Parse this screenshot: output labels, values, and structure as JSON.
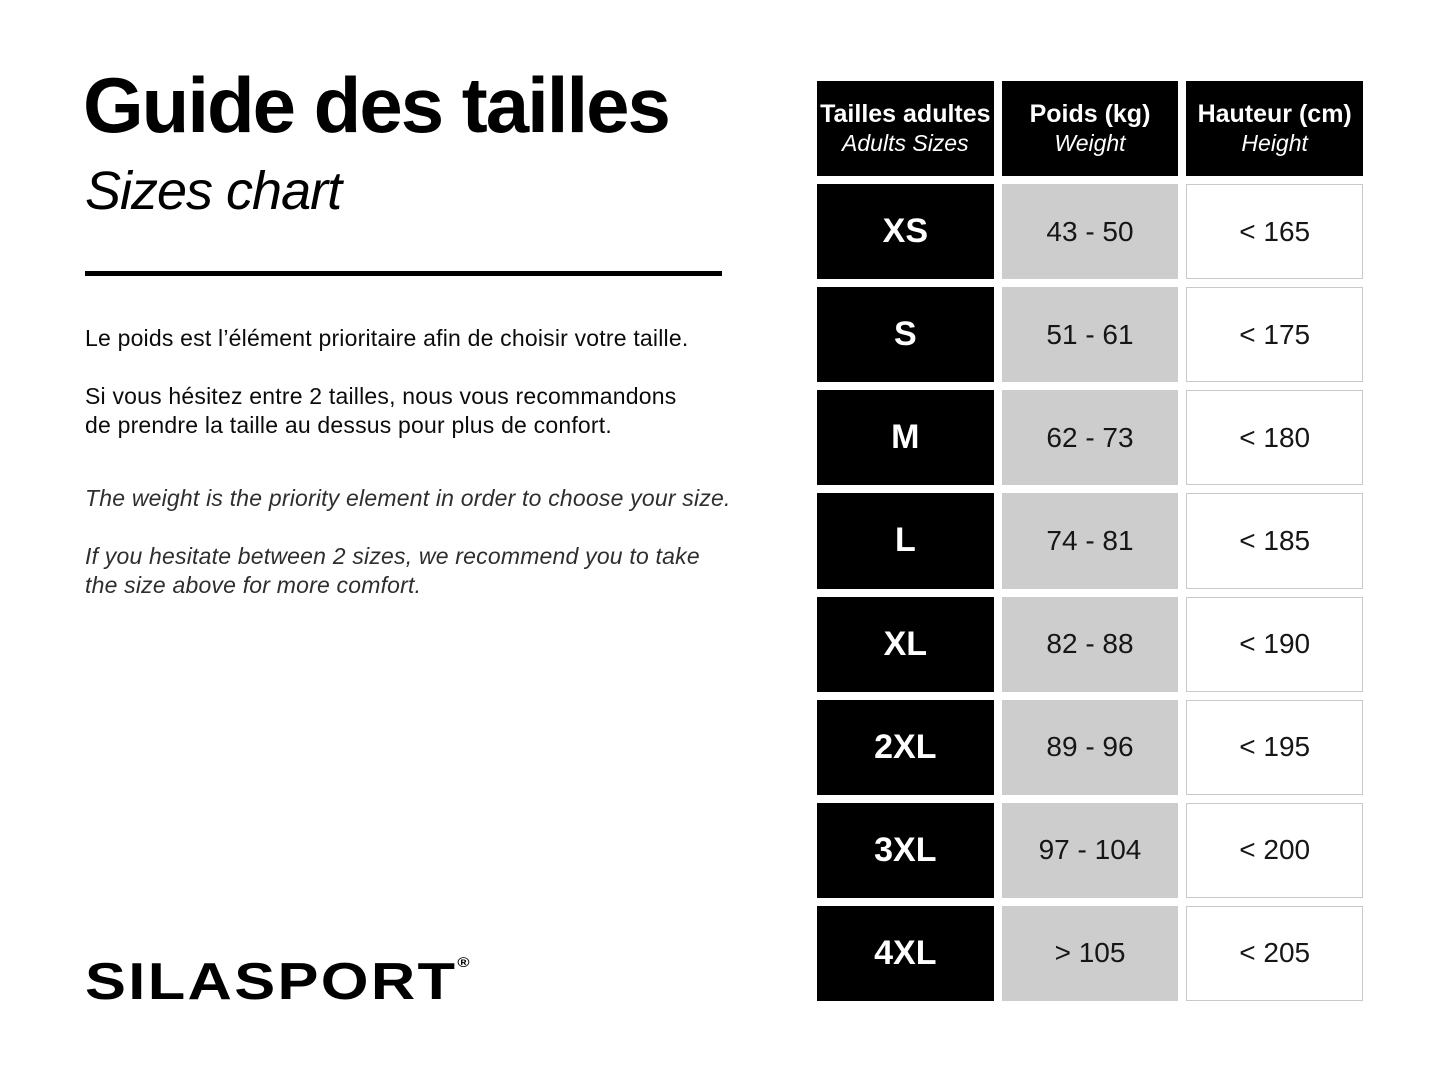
{
  "header": {
    "title_fr": "Guide des tailles",
    "title_en": "Sizes chart"
  },
  "intro": {
    "fr_1": "Le poids est l’élément prioritaire afin de choisir votre taille.",
    "fr_2": "Si vous hésitez entre 2 tailles, nous vous recommandons\nde prendre la taille au dessus pour plus de confort.",
    "en_1": "The weight is the priority element in order to choose your size.",
    "en_2": "If you hesitate between 2 sizes, we recommend you to take\nthe size above for more comfort."
  },
  "brand": {
    "name": "SILASPORT",
    "reg": "®"
  },
  "colors": {
    "table_black": "#000000",
    "weight_cell_gray": "#cdcdcd",
    "height_cell_border": "#c9c9c9",
    "background": "#ffffff"
  },
  "chart_data": {
    "type": "table",
    "columns": [
      {
        "label_fr": "Tailles adultes",
        "label_en": "Adults Sizes"
      },
      {
        "label_fr": "Poids (kg)",
        "label_en": "Weight"
      },
      {
        "label_fr": "Hauteur (cm)",
        "label_en": "Height"
      }
    ],
    "rows": [
      {
        "size": "XS",
        "weight": "43 - 50",
        "height": "< 165"
      },
      {
        "size": "S",
        "weight": "51 - 61",
        "height": "< 175"
      },
      {
        "size": "M",
        "weight": "62 - 73",
        "height": "< 180"
      },
      {
        "size": "L",
        "weight": "74 - 81",
        "height": "< 185"
      },
      {
        "size": "XL",
        "weight": "82 - 88",
        "height": "< 190"
      },
      {
        "size": "2XL",
        "weight": "89 - 96",
        "height": "< 195"
      },
      {
        "size": "3XL",
        "weight": "97 - 104",
        "height": "< 200"
      },
      {
        "size": "4XL",
        "weight": "> 105",
        "height": "< 205"
      }
    ]
  }
}
